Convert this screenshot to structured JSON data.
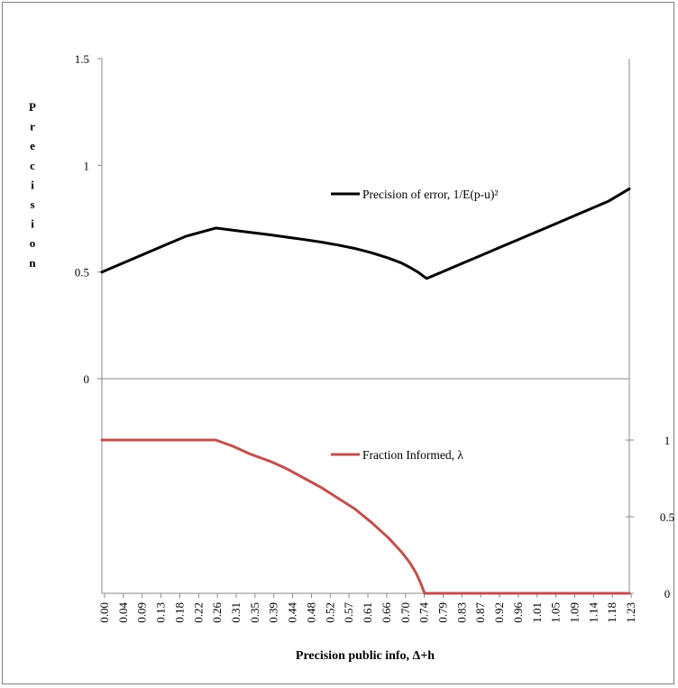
{
  "chart_data": {
    "type": "line",
    "xlabel": "Precision public info, Δ+h",
    "ylabel": "Precision",
    "x_ticks": [
      "0.00",
      "0.04",
      "0.09",
      "0.13",
      "0.18",
      "0.22",
      "0.26",
      "0.31",
      "0.35",
      "0.39",
      "0.44",
      "0.48",
      "0.52",
      "0.57",
      "0.61",
      "0.66",
      "0.70",
      "0.74",
      "0.79",
      "0.83",
      "0.87",
      "0.92",
      "0.96",
      "1.01",
      "1.05",
      "1.09",
      "1.14",
      "1.18",
      "1.23"
    ],
    "xlim": [
      0.0,
      1.25
    ],
    "top_panel": {
      "ylim": [
        0,
        1.5
      ],
      "y_ticks": [
        "0",
        "0.5",
        "1",
        "1.5"
      ],
      "series": [
        {
          "name": "Precision of error, 1/E(p-u)²",
          "color": "#000000",
          "x": [
            0.0,
            0.05,
            0.1,
            0.15,
            0.2,
            0.27,
            0.31,
            0.35,
            0.4,
            0.44,
            0.48,
            0.52,
            0.56,
            0.6,
            0.64,
            0.68,
            0.71,
            0.73,
            0.75,
            0.765,
            0.77,
            0.8,
            0.85,
            0.9,
            0.95,
            1.0,
            1.05,
            1.1,
            1.15,
            1.2,
            1.25
          ],
          "values": [
            0.5,
            0.542,
            0.584,
            0.626,
            0.668,
            0.706,
            0.696,
            0.686,
            0.674,
            0.663,
            0.652,
            0.64,
            0.626,
            0.61,
            0.59,
            0.565,
            0.542,
            0.522,
            0.498,
            0.476,
            0.47,
            0.495,
            0.537,
            0.579,
            0.621,
            0.663,
            0.705,
            0.747,
            0.789,
            0.831,
            0.89
          ]
        }
      ]
    },
    "bottom_panel": {
      "ylim": [
        0,
        1.2
      ],
      "y_ticks": [
        "0",
        "0.5",
        "1"
      ],
      "series": [
        {
          "name": "Fraction Informed, λ",
          "color": "#c0504d",
          "x": [
            0.0,
            0.27,
            0.31,
            0.35,
            0.4,
            0.44,
            0.48,
            0.52,
            0.56,
            0.6,
            0.64,
            0.68,
            0.71,
            0.73,
            0.745,
            0.755,
            0.765,
            0.77,
            0.8,
            1.0,
            1.25
          ],
          "values": [
            1.0,
            1.0,
            0.96,
            0.91,
            0.86,
            0.81,
            0.75,
            0.69,
            0.62,
            0.55,
            0.46,
            0.36,
            0.27,
            0.2,
            0.13,
            0.07,
            0.0,
            0.0,
            0.0,
            0.0,
            0.0
          ]
        }
      ]
    }
  }
}
